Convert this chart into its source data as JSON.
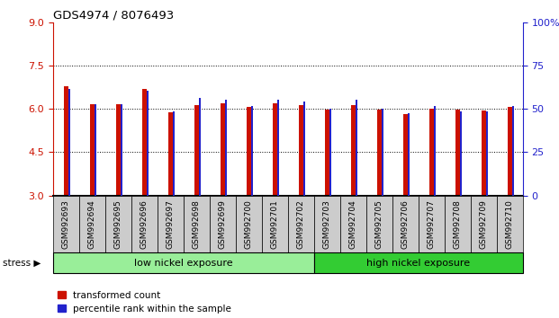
{
  "title": "GDS4974 / 8076493",
  "samples": [
    "GSM992693",
    "GSM992694",
    "GSM992695",
    "GSM992696",
    "GSM992697",
    "GSM992698",
    "GSM992699",
    "GSM992700",
    "GSM992701",
    "GSM992702",
    "GSM992703",
    "GSM992704",
    "GSM992705",
    "GSM992706",
    "GSM992707",
    "GSM992708",
    "GSM992709",
    "GSM992710"
  ],
  "red_values": [
    6.8,
    6.15,
    6.15,
    6.7,
    5.87,
    6.12,
    6.18,
    6.07,
    6.18,
    6.12,
    5.98,
    6.12,
    5.98,
    5.82,
    6.02,
    5.98,
    5.96,
    6.07
  ],
  "blue_values": [
    6.68,
    6.17,
    6.17,
    6.63,
    5.9,
    6.37,
    6.32,
    6.1,
    6.33,
    6.27,
    6.02,
    6.33,
    6.02,
    5.85,
    6.1,
    5.9,
    5.92,
    6.1
  ],
  "ylim_left": [
    3,
    9
  ],
  "ylim_right": [
    0,
    100
  ],
  "yticks_left": [
    3,
    4.5,
    6,
    7.5,
    9
  ],
  "yticks_right": [
    0,
    25,
    50,
    75,
    100
  ],
  "bar_bottom": 3,
  "group1_label": "low nickel exposure",
  "group2_label": "high nickel exposure",
  "group1_count": 10,
  "group2_count": 8,
  "stress_label": "stress",
  "legend1": "transformed count",
  "legend2": "percentile rank within the sample",
  "group1_color": "#99EE99",
  "group2_color": "#33CC33",
  "bar_color_red": "#CC1100",
  "bar_color_blue": "#2222CC",
  "left_tick_color": "#CC1100",
  "right_tick_color": "#2222CC",
  "bg_color": "#FFFFFF",
  "plot_bg_color": "#FFFFFF",
  "tick_bg_color": "#CCCCCC",
  "red_bar_width": 0.18,
  "blue_bar_width": 0.08
}
